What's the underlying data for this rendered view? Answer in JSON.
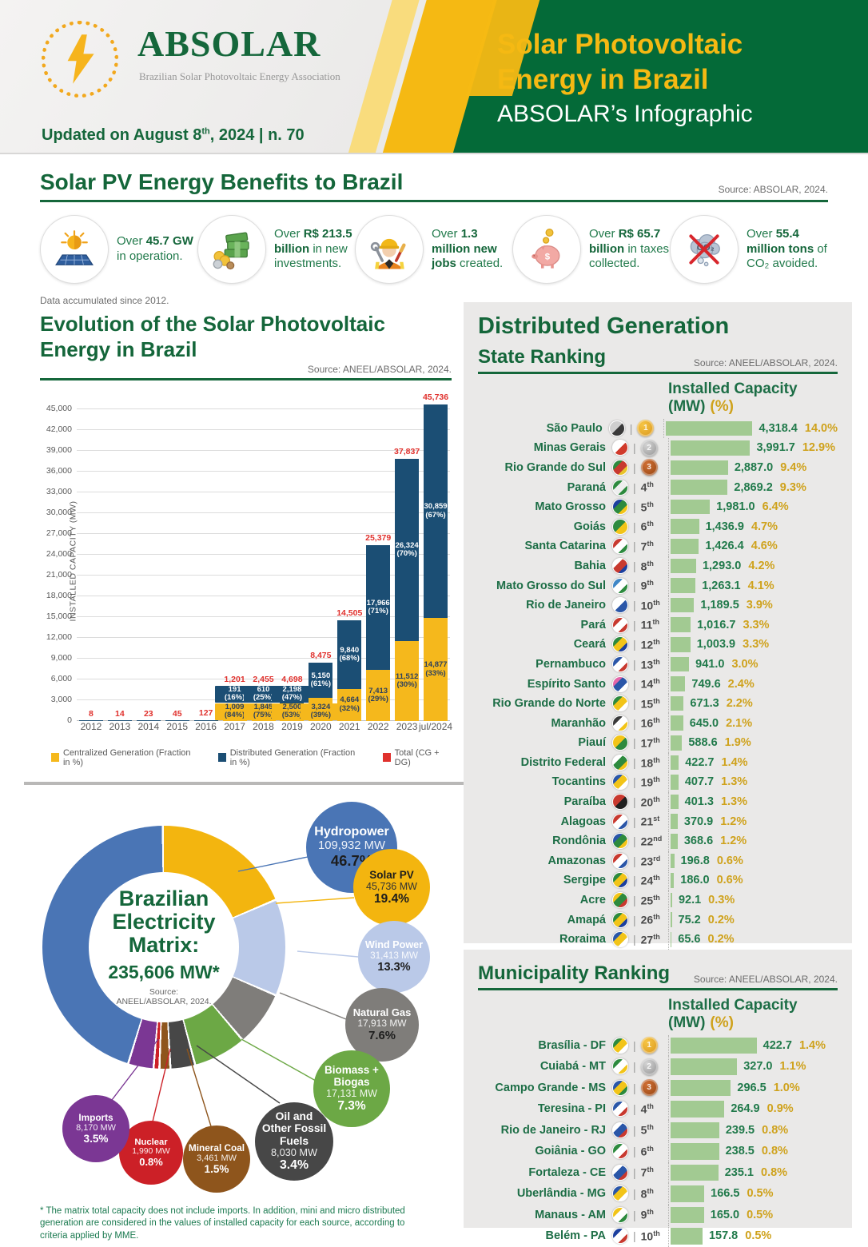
{
  "header": {
    "brand": "ABSOLAR",
    "tagline": "Brazilian Solar Photovoltaic Energy Association",
    "updated_pre": "Updated on August 8",
    "updated_sup": "th",
    "updated_post": ", 2024 | n. 70",
    "title_line1": "Solar Photovoltaic",
    "title_line2": "Energy in Brazil",
    "subtitle": "ABSOLAR’s Infographic"
  },
  "benefits": {
    "title": "Solar PV Energy Benefits to Brazil",
    "source": "Source: ABSOLAR, 2024.",
    "footnote": "Data accumulated since 2012.",
    "items": [
      {
        "icon": "solar-panel-icon",
        "pre": "Over",
        "bold": "45.7 GW",
        "post": "in operation."
      },
      {
        "icon": "money-icon",
        "pre": "Over",
        "bold": "R$ 213.5 billion",
        "post": "in new investments."
      },
      {
        "icon": "worker-icon",
        "pre": "Over",
        "bold": "1.3 million new jobs",
        "post": "created."
      },
      {
        "icon": "piggy-bank-icon",
        "pre": "Over",
        "bold": "R$ 65.7 billion",
        "post": "in taxes collected."
      },
      {
        "icon": "co2-icon",
        "pre": "Over",
        "bold": "55.4 million tons",
        "post": "of CO₂ avoided."
      }
    ]
  },
  "evolution": {
    "title_line1": "Evolution of the Solar Photovoltaic",
    "title_line2": "Energy in Brazil",
    "source": "Source: ANEEL/ABSOLAR, 2024."
  },
  "matrix": {
    "center_title": "Brazilian Electricity Matrix:",
    "center_total": "235,606 MW*",
    "center_source_1": "Source:",
    "center_source_2": "ANEEL/ABSOLAR, 2024.",
    "footnote": "* The matrix total capacity does not include imports. In addition, mini and micro distributed generation are considered in the values of installed capacity for each source, according to criteria applied by MME."
  },
  "distributed": {
    "title": "Distributed Generation",
    "source": "Source: ANEEL/ABSOLAR, 2024.",
    "col_header": "Installed Capacity (MW)",
    "col_pct": "(%)",
    "state": {
      "subtitle": "State Ranking",
      "flags": [
        [
          "#cfcfcf",
          "#3a3a3a"
        ],
        [
          "#ffffff",
          "#d03a2b"
        ],
        [
          "#2d8a3e",
          "#c8392f",
          "#e8c32a"
        ],
        [
          "#2d8a3e",
          "#eeeeee",
          "#2d8a3e"
        ],
        [
          "#1b3f9e",
          "#2d8a3e",
          "#f2c418"
        ],
        [
          "#2d8a3e",
          "#f2c418"
        ],
        [
          "#c8392f",
          "#ffffff",
          "#2d8a3e"
        ],
        [
          "#ffffff",
          "#c8392f",
          "#1b3f9e"
        ],
        [
          "#3f86c6",
          "#ffffff",
          "#2d8a3e"
        ],
        [
          "#ffffff",
          "#2a56a8"
        ],
        [
          "#c8392f",
          "#ffffff",
          "#c8392f"
        ],
        [
          "#2d8a3e",
          "#f2c418",
          "#1b3f9e"
        ],
        [
          "#2a56a8",
          "#ffffff",
          "#c8392f"
        ],
        [
          "#e466a8",
          "#2a56a8",
          "#ffffff"
        ],
        [
          "#2d8a3e",
          "#f2c418",
          "#ffffff"
        ],
        [
          "#3a3a3a",
          "#ffffff",
          "#f2c418"
        ],
        [
          "#f2c418",
          "#2d8a3e"
        ],
        [
          "#ffffff",
          "#2d8a3e",
          "#f2c418"
        ],
        [
          "#2a56a8",
          "#f2c418",
          "#ffffff"
        ],
        [
          "#c8392f",
          "#1f1f1f"
        ],
        [
          "#c8392f",
          "#ffffff",
          "#2a56a8"
        ],
        [
          "#2a56a8",
          "#2d8a3e",
          "#f2c418"
        ],
        [
          "#c8392f",
          "#ffffff",
          "#2a56a8"
        ],
        [
          "#2d8a3e",
          "#f2c418",
          "#1b3f9e"
        ],
        [
          "#f2c418",
          "#2d8a3e",
          "#c8392f"
        ],
        [
          "#2d8a3e",
          "#f2c418",
          "#1b3f9e"
        ],
        [
          "#2a56a8",
          "#f2c418",
          "#ffffff"
        ]
      ]
    },
    "municipality": {
      "subtitle": "Municipality Ranking",
      "flags": [
        [
          "#2d8a3e",
          "#f2c418",
          "#ffffff"
        ],
        [
          "#2d8a3e",
          "#ffffff",
          "#f2c418"
        ],
        [
          "#2a56a8",
          "#f2c418",
          "#2d8a3e"
        ],
        [
          "#2a56a8",
          "#ffffff",
          "#c8392f"
        ],
        [
          "#ffffff",
          "#2a56a8",
          "#c8392f"
        ],
        [
          "#2d8a3e",
          "#ffffff",
          "#c8392f"
        ],
        [
          "#ffffff",
          "#2a56a8",
          "#c8392f"
        ],
        [
          "#2a56a8",
          "#f2c418",
          "#ffffff"
        ],
        [
          "#f2c418",
          "#ffffff",
          "#2d8a3e"
        ],
        [
          "#1b3f9e",
          "#ffffff",
          "#c8392f"
        ]
      ]
    }
  },
  "chart_data": [
    {
      "type": "bar",
      "stacked": true,
      "title": "Evolution of the Solar Photovoltaic Energy in Brazil",
      "categories": [
        "2012",
        "2013",
        "2014",
        "2015",
        "2016",
        "2017",
        "2018",
        "2019",
        "2020",
        "2021",
        "2022",
        "2023",
        "jul/2024"
      ],
      "series": [
        {
          "name": "Centralized Generation (Fraction in %)",
          "color": "#f5b81c",
          "values": [
            0,
            0,
            0,
            0,
            0,
            1009,
            1845,
            2500,
            3324,
            4664,
            7413,
            11512,
            14877
          ],
          "pct": [
            null,
            null,
            null,
            null,
            null,
            84,
            75,
            53,
            39,
            32,
            29,
            30,
            33
          ]
        },
        {
          "name": "Distributed Generation (Fraction in %)",
          "color": "#1b4e74",
          "values": [
            8,
            14,
            23,
            45,
            127,
            191,
            610,
            2198,
            5150,
            9840,
            17966,
            26324,
            30859
          ],
          "pct": [
            null,
            null,
            null,
            null,
            null,
            16,
            25,
            47,
            61,
            68,
            71,
            70,
            67
          ]
        }
      ],
      "totals": {
        "name": "Total (CG + DG)",
        "color": "#e0312d",
        "values": [
          8,
          14,
          23,
          45,
          127,
          1201,
          2455,
          4698,
          8475,
          14505,
          25379,
          37837,
          45736
        ]
      },
      "ylabel": "INSTALLED CAPACITY (MW)",
      "ylim": [
        0,
        45000
      ],
      "ytick": 3000,
      "legend_position": "bottom",
      "grid": true
    },
    {
      "type": "pie",
      "title": "Brazilian Electricity Matrix: 235,606 MW*",
      "slices": [
        {
          "label": "Solar PV",
          "mw": 45736,
          "pct": 19.4,
          "color": "#f3b50f"
        },
        {
          "label": "Wind Power",
          "mw": 31413,
          "pct": 13.3,
          "color": "#bac9e8"
        },
        {
          "label": "Natural Gas",
          "mw": 17913,
          "pct": 7.6,
          "color": "#7f7d7a"
        },
        {
          "label": "Biomass + Biogas",
          "mw": 17131,
          "pct": 7.3,
          "color": "#6ca845"
        },
        {
          "label": "Oil and Other Fossil Fuels",
          "mw": 8030,
          "pct": 3.4,
          "color": "#474747"
        },
        {
          "label": "Mineral Coal",
          "mw": 3461,
          "pct": 1.5,
          "color": "#8e551c"
        },
        {
          "label": "Nuclear",
          "mw": 1990,
          "pct": 0.8,
          "color": "#cc2027"
        },
        {
          "label": "Imports",
          "mw": 8170,
          "pct": 3.5,
          "color": "#7b3794"
        },
        {
          "label": "Hydropower",
          "mw": 109932,
          "pct": 46.7,
          "color": "#4a75b5"
        }
      ]
    },
    {
      "type": "bar",
      "title": "Distributed Generation — State Ranking — Installed Capacity (MW)",
      "categories": [
        "São Paulo",
        "Minas Gerais",
        "Rio Grande do Sul",
        "Paraná",
        "Mato Grosso",
        "Goiás",
        "Santa Catarina",
        "Bahia",
        "Mato Grosso do Sul",
        "Rio de Janeiro",
        "Pará",
        "Ceará",
        "Pernambuco",
        "Espírito Santo",
        "Rio Grande do Norte",
        "Maranhão",
        "Piauí",
        "Distrito Federal",
        "Tocantins",
        "Paraíba",
        "Alagoas",
        "Rondônia",
        "Amazonas",
        "Sergipe",
        "Acre",
        "Amapá",
        "Roraima"
      ],
      "values": [
        4318.4,
        3991.7,
        2887.0,
        2869.2,
        1981.0,
        1436.9,
        1426.4,
        1293.0,
        1263.1,
        1189.5,
        1016.7,
        1003.9,
        941.0,
        749.6,
        671.3,
        645.0,
        588.6,
        422.7,
        407.7,
        401.3,
        370.9,
        368.6,
        196.8,
        186.0,
        92.1,
        75.2,
        65.6
      ],
      "pct": [
        14.0,
        12.9,
        9.4,
        9.3,
        6.4,
        4.7,
        4.6,
        4.2,
        4.1,
        3.9,
        3.3,
        3.3,
        3.0,
        2.4,
        2.2,
        2.1,
        1.9,
        1.4,
        1.3,
        1.3,
        1.2,
        1.2,
        0.6,
        0.6,
        0.3,
        0.2,
        0.2
      ]
    },
    {
      "type": "bar",
      "title": "Distributed Generation — Municipality Ranking — Installed Capacity (MW)",
      "categories": [
        "Brasília - DF",
        "Cuiabá - MT",
        "Campo Grande - MS",
        "Teresina - PI",
        "Rio de Janeiro - RJ",
        "Goiânia - GO",
        "Fortaleza - CE",
        "Uberlândia - MG",
        "Manaus - AM",
        "Belém - PA"
      ],
      "values": [
        422.7,
        327.0,
        296.5,
        264.9,
        239.5,
        238.5,
        235.1,
        166.5,
        165.0,
        157.8
      ],
      "pct": [
        1.4,
        1.1,
        1.0,
        0.9,
        0.8,
        0.8,
        0.8,
        0.5,
        0.5,
        0.5
      ]
    }
  ]
}
